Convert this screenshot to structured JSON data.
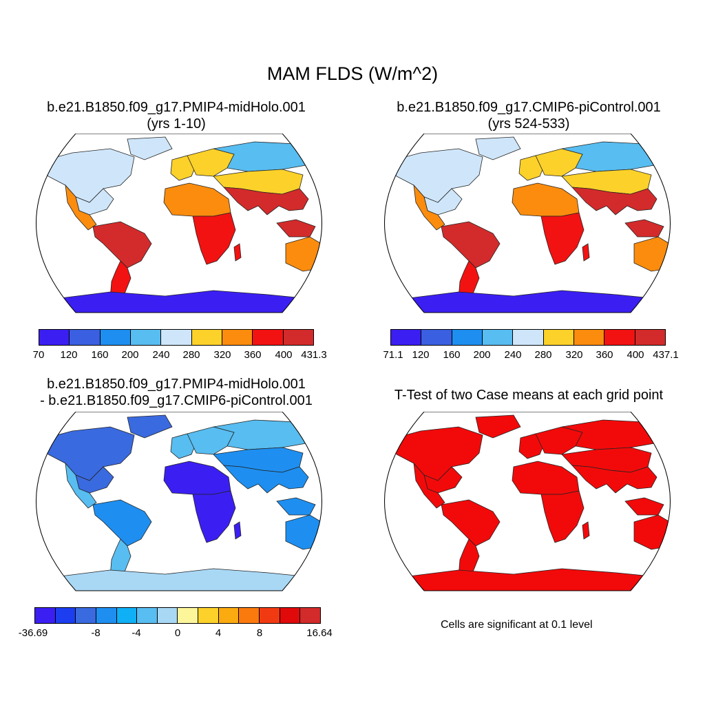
{
  "title": "MAM FLDS (W/m^2)",
  "panels": {
    "top_left": {
      "title_line1": "b.e21.B1850.f09_g17.PMIP4-midHolo.001",
      "title_line2": "(yrs 1-10)",
      "colorbar": {
        "colors": [
          "#3b1ff2",
          "#3a5fe0",
          "#1e8ff0",
          "#58bdf0",
          "#cfe6fa",
          "#fcd12a",
          "#fb8c0e",
          "#f21212",
          "#d32b2b"
        ],
        "labels": [
          "70",
          "120",
          "160",
          "200",
          "240",
          "280",
          "320",
          "360",
          "400",
          "431.3"
        ]
      }
    },
    "top_right": {
      "title_line1": "b.e21.B1850.f09_g17.CMIP6-piControl.001",
      "title_line2": "(yrs 524-533)",
      "colorbar": {
        "colors": [
          "#3b1ff2",
          "#3a5fe0",
          "#1e8ff0",
          "#58bdf0",
          "#cfe6fa",
          "#fcd12a",
          "#fb8c0e",
          "#f21212",
          "#d32b2b"
        ],
        "labels": [
          "71.1",
          "120",
          "160",
          "200",
          "240",
          "280",
          "320",
          "360",
          "400",
          "437.1"
        ]
      }
    },
    "bottom_left": {
      "title_line1": "b.e21.B1850.f09_g17.PMIP4-midHolo.001",
      "title_line2": "- b.e21.B1850.f09_g17.CMIP6-piControl.001",
      "colorbar": {
        "colors": [
          "#3b1ff2",
          "#1c3ef0",
          "#3a6ae0",
          "#1e8ff0",
          "#0fb0f5",
          "#58bdf0",
          "#a9d8f5",
          "#fdf59a",
          "#fcd12a",
          "#fbaa10",
          "#fb7a0e",
          "#f23a12",
          "#e00a0a",
          "#d32b2b"
        ],
        "labels": [
          "-36.69",
          "-8",
          "-4",
          "0",
          "4",
          "8",
          "16.64"
        ]
      }
    },
    "bottom_right": {
      "title": "T-Test of two Case means at each grid point",
      "note": "Cells are significant at 0.1 level"
    }
  }
}
